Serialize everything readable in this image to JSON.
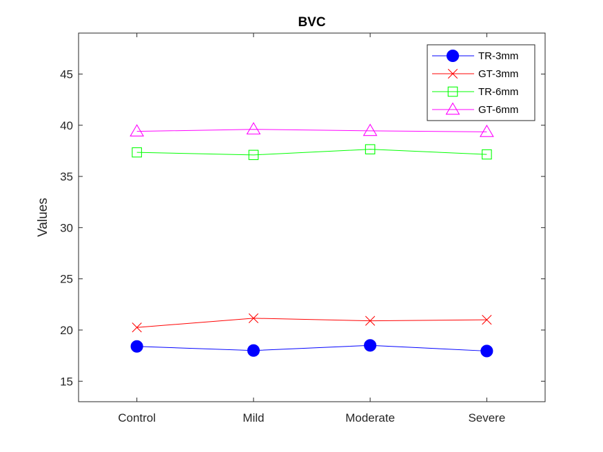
{
  "chart_data": {
    "type": "line",
    "title": "BVC",
    "xlabel": "",
    "ylabel": "Values",
    "categories": [
      "Control",
      "Mild",
      "Moderate",
      "Severe"
    ],
    "ylim": [
      13,
      49
    ],
    "yticks": [
      15,
      20,
      25,
      30,
      35,
      40,
      45
    ],
    "grid": false,
    "legend_position": "top-right",
    "series": [
      {
        "name": "TR-3mm",
        "values": [
          18.4,
          18.0,
          18.5,
          17.95
        ],
        "color": "#0000ff",
        "marker": "filled-circle"
      },
      {
        "name": "GT-3mm",
        "values": [
          20.25,
          21.15,
          20.9,
          21.0
        ],
        "color": "#ff0000",
        "marker": "x"
      },
      {
        "name": "TR-6mm",
        "values": [
          37.35,
          37.1,
          37.65,
          37.15
        ],
        "color": "#00ff00",
        "marker": "square"
      },
      {
        "name": "GT-6mm",
        "values": [
          39.4,
          39.6,
          39.45,
          39.35
        ],
        "color": "#ff00ff",
        "marker": "triangle"
      }
    ]
  }
}
